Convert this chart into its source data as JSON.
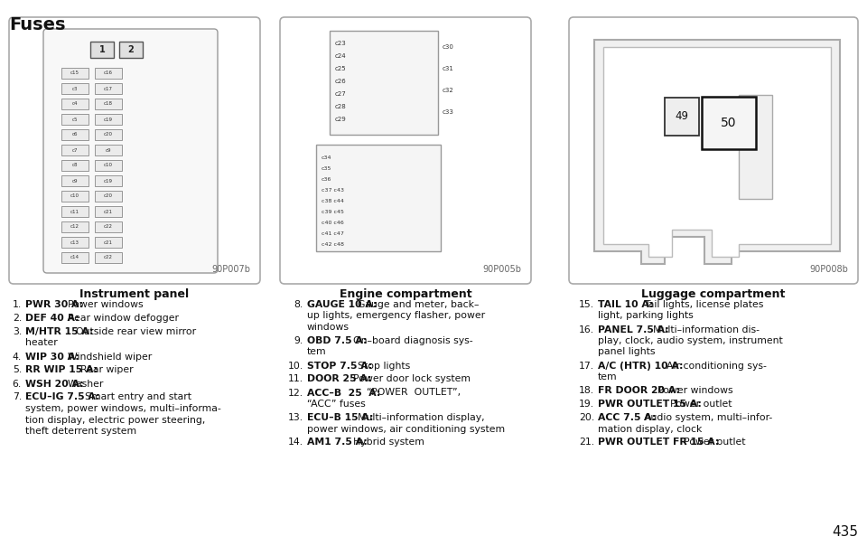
{
  "title": "Fuses",
  "page_number": "435",
  "bg_color": "#ffffff",
  "text_color": "#1a1a1a",
  "diagram_labels": [
    "Instrument panel",
    "Engine compartment",
    "Luggage compartment"
  ],
  "diagram_codes": [
    "90P007b",
    "90P005b",
    "90P008b"
  ],
  "col1_items": [
    {
      "num": "1.",
      "bold": "PWR 30 A:",
      "desc": "Power windows"
    },
    {
      "num": "2.",
      "bold": "DEF 40 A:",
      "desc": "Rear window defogger"
    },
    {
      "num": "3.",
      "bold": "M/HTR 15 A:",
      "desc": "Outside rear view mirror\nheater"
    },
    {
      "num": "4.",
      "bold": "WIP 30 A:",
      "desc": "Windshield wiper"
    },
    {
      "num": "5.",
      "bold": "RR WIP 15 A:",
      "desc": "Rear wiper"
    },
    {
      "num": "6.",
      "bold": "WSH 20 A:",
      "desc": "Washer"
    },
    {
      "num": "7.",
      "bold": "ECU–IG 7.5 A:",
      "desc": "Smart entry and start\nsystem, power windows, multi–informa-\ntion display, electric power steering,\ntheft deterrent system"
    }
  ],
  "col2_items": [
    {
      "num": "8.",
      "bold": "GAUGE 10 A:",
      "desc": "Gauge and meter, back–\nup lights, emergency flasher, power\nwindows"
    },
    {
      "num": "9.",
      "bold": "OBD 7.5 A:",
      "desc": "On–board diagnosis sys-\ntem"
    },
    {
      "num": "10.",
      "bold": "STOP 7.5 A:",
      "desc": "Stop lights"
    },
    {
      "num": "11.",
      "bold": "DOOR 25 A:",
      "desc": "Power door lock system"
    },
    {
      "num": "12.",
      "bold": "ACC–B  25  A:",
      "desc": "“POWER  OUTLET”,\n“ACC” fuses"
    },
    {
      "num": "13.",
      "bold": "ECU–B 15 A:",
      "desc": "Multi–information display,\npower windows, air conditioning system"
    },
    {
      "num": "14.",
      "bold": "AM1 7.5 A:",
      "desc": "Hybrid system"
    }
  ],
  "col3_items": [
    {
      "num": "15.",
      "bold": "TAIL 10 A:",
      "desc": "Tail lights, license plates\nlight, parking lights"
    },
    {
      "num": "16.",
      "bold": "PANEL 7.5 A:",
      "desc": "Multi–information dis-\nplay, clock, audio system, instrument\npanel lights"
    },
    {
      "num": "17.",
      "bold": "A/C (HTR) 10 A:",
      "desc": "Air conditioning sys-\ntem"
    },
    {
      "num": "18.",
      "bold": "FR DOOR 20 A:",
      "desc": "Power windows"
    },
    {
      "num": "19.",
      "bold": "PWR OUTLET 15 A:",
      "desc": "Power outlet"
    },
    {
      "num": "20.",
      "bold": "ACC 7.5 A:",
      "desc": "Audio system, multi–infor-\nmation display, clock"
    },
    {
      "num": "21.",
      "bold": "PWR OUTLET FR 15 A:",
      "desc": "Power outlet"
    }
  ],
  "instr_fuse_rows": [
    [
      "c15",
      "c16"
    ],
    [
      "c3",
      "c17"
    ],
    [
      "c4",
      "c18"
    ],
    [
      "c5",
      "c19"
    ],
    [
      "c6",
      "c20"
    ],
    [
      "c7",
      "c9"
    ],
    [
      "c8",
      "c10"
    ],
    [
      "c9",
      "c19"
    ],
    [
      "c10",
      "c20"
    ],
    [
      "c11",
      "c21"
    ],
    [
      "c12",
      "c22"
    ],
    [
      "c13",
      "c21"
    ],
    [
      "c14",
      "c22"
    ]
  ],
  "eng_left_labels": [
    "c23",
    "c24",
    "c25",
    "c26",
    "c27",
    "c28",
    "c29"
  ],
  "eng_right_labels": [
    "c30",
    "c31",
    "c32",
    "c33"
  ],
  "eng_bot_labels": [
    "c34",
    "c35",
    "c36",
    "c37 c43",
    "c38 c44",
    "c39 c45",
    "c40 c46",
    "c41 c47",
    "c42 c48"
  ]
}
